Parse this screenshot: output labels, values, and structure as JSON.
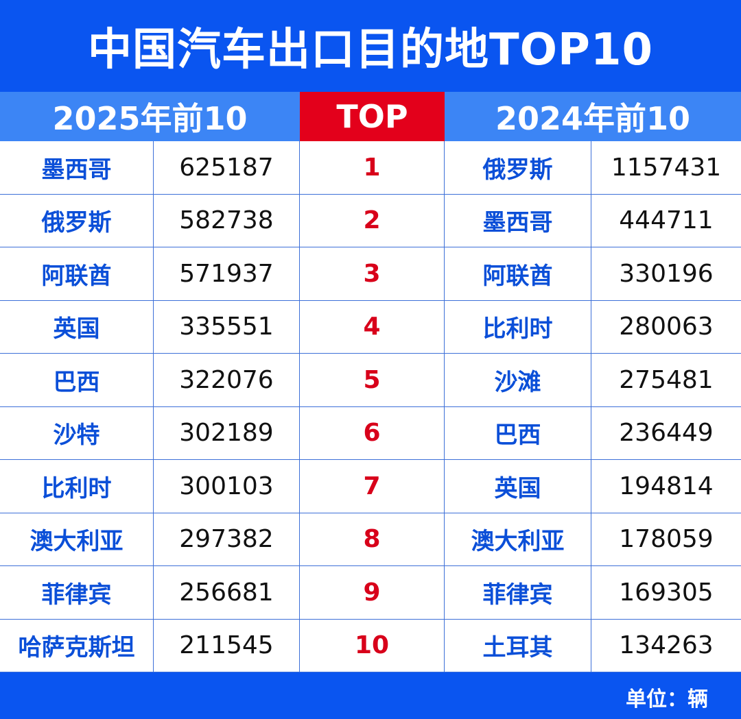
{
  "title": "中国汽车出口目的地TOP10",
  "headers": {
    "left": "2025年前10",
    "middle": "TOP",
    "right": "2024年前10"
  },
  "unit_label": "单位：辆",
  "colors": {
    "title_bg": "#0a55f0",
    "header_bg": "#3c85f5",
    "top_bg": "#e3001b",
    "country_text": "#0b4fd8",
    "rank_text": "#d8001a"
  },
  "chart_data": {
    "type": "table",
    "title": "中国汽车出口目的地TOP10",
    "columns": [
      "2025年前10",
      "TOP",
      "2024年前10"
    ],
    "rows": [
      {
        "rank": "1",
        "c2025": "墨西哥",
        "v2025": "625187",
        "c2024": "俄罗斯",
        "v2024": "1157431"
      },
      {
        "rank": "2",
        "c2025": "俄罗斯",
        "v2025": "582738",
        "c2024": "墨西哥",
        "v2024": "444711"
      },
      {
        "rank": "3",
        "c2025": "阿联酋",
        "v2025": "571937",
        "c2024": "阿联酋",
        "v2024": "330196"
      },
      {
        "rank": "4",
        "c2025": "英国",
        "v2025": "335551",
        "c2024": "比利时",
        "v2024": "280063"
      },
      {
        "rank": "5",
        "c2025": "巴西",
        "v2025": "322076",
        "c2024": "沙滩",
        "v2024": "275481"
      },
      {
        "rank": "6",
        "c2025": "沙特",
        "v2025": "302189",
        "c2024": "巴西",
        "v2024": "236449"
      },
      {
        "rank": "7",
        "c2025": "比利时",
        "v2025": "300103",
        "c2024": "英国",
        "v2024": "194814"
      },
      {
        "rank": "8",
        "c2025": "澳大利亚",
        "v2025": "297382",
        "c2024": "澳大利亚",
        "v2024": "178059"
      },
      {
        "rank": "9",
        "c2025": "菲律宾",
        "v2025": "256681",
        "c2024": "菲律宾",
        "v2024": "169305"
      },
      {
        "rank": "10",
        "c2025": "哈萨克斯坦",
        "v2025": "211545",
        "c2024": "土耳其",
        "v2024": "134263"
      }
    ],
    "unit": "单位：辆"
  }
}
